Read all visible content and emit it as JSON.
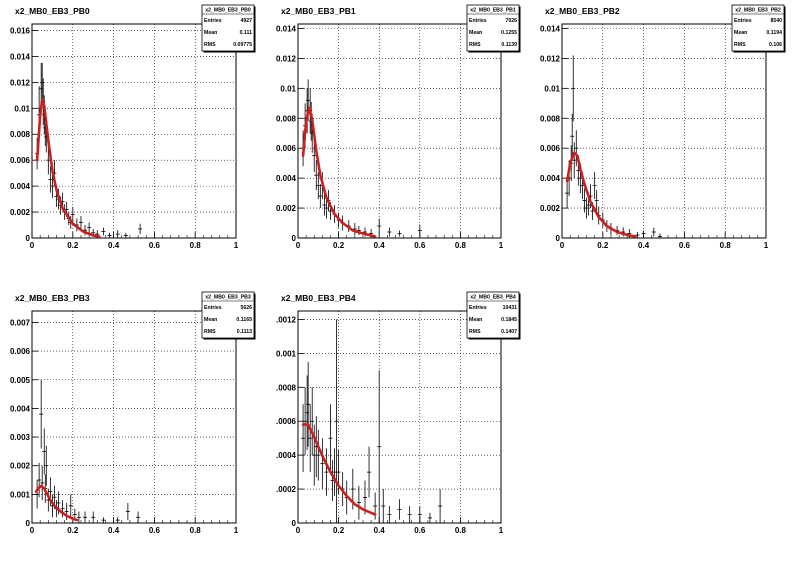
{
  "chart_data": [
    {
      "type": "scatter",
      "title": "x2_MB0_EB3_PB0",
      "xlim": [
        0,
        1
      ],
      "ylim": [
        0,
        0.0165
      ],
      "x_ticks": [
        "0",
        "0.2",
        "0.4",
        "0.6",
        "0.8",
        "1"
      ],
      "y_ticks": [
        0,
        0.002,
        0.004,
        0.006,
        0.008,
        0.01,
        0.012,
        0.014,
        0.016
      ],
      "y_tick_labels": [
        "0",
        "0.002",
        "0.004",
        "0.006",
        "0.008",
        "0.01",
        "0.012",
        "0.014",
        "0.016"
      ],
      "grid": true,
      "stats": {
        "name": "x2_MB0_EB3_PB0",
        "rows": [
          [
            "Entries",
            "4927"
          ],
          [
            "Mean",
            "0.111"
          ],
          [
            "RMS",
            "0.09775"
          ]
        ]
      },
      "points": [
        [
          0.025,
          0.0065,
          0.0012
        ],
        [
          0.035,
          0.0095,
          0.0022
        ],
        [
          0.045,
          0.0115,
          0.002
        ],
        [
          0.05,
          0.012,
          0.0015
        ],
        [
          0.055,
          0.0105,
          0.0018
        ],
        [
          0.06,
          0.0095,
          0.0015
        ],
        [
          0.065,
          0.0085,
          0.0014
        ],
        [
          0.07,
          0.0078,
          0.0012
        ],
        [
          0.08,
          0.006,
          0.0011
        ],
        [
          0.09,
          0.0045,
          0.001
        ],
        [
          0.1,
          0.004,
          0.0009
        ],
        [
          0.11,
          0.005,
          0.001
        ],
        [
          0.12,
          0.0032,
          0.0008
        ],
        [
          0.13,
          0.003,
          0.0008
        ],
        [
          0.14,
          0.0025,
          0.0007
        ],
        [
          0.15,
          0.0028,
          0.0007
        ],
        [
          0.16,
          0.002,
          0.0006
        ],
        [
          0.17,
          0.0022,
          0.0006
        ],
        [
          0.18,
          0.0015,
          0.0005
        ],
        [
          0.19,
          0.0012,
          0.0005
        ],
        [
          0.2,
          0.0018,
          0.0006
        ],
        [
          0.22,
          0.001,
          0.0005
        ],
        [
          0.24,
          0.0012,
          0.0005
        ],
        [
          0.26,
          0.0006,
          0.0004
        ],
        [
          0.28,
          0.0008,
          0.0004
        ],
        [
          0.3,
          0.0004,
          0.0003
        ],
        [
          0.32,
          0.0003,
          0.0003
        ],
        [
          0.35,
          0.0005,
          0.0003
        ],
        [
          0.38,
          0.0002,
          0.0002
        ],
        [
          0.42,
          0.0003,
          0.0003
        ],
        [
          0.46,
          0.0002,
          0.0002
        ],
        [
          0.53,
          0.0007,
          0.0004
        ]
      ],
      "fit": {
        "x": [
          0.025,
          0.04,
          0.05,
          0.06,
          0.08,
          0.1,
          0.12,
          0.15,
          0.2,
          0.25,
          0.3,
          0.33
        ],
        "y": [
          0.006,
          0.0095,
          0.0107,
          0.0102,
          0.0075,
          0.0052,
          0.0037,
          0.0023,
          0.0011,
          0.0005,
          0.0002,
          0.0001
        ]
      }
    },
    {
      "type": "scatter",
      "title": "x2_MB0_EB3_PB1",
      "xlim": [
        0,
        1
      ],
      "ylim": [
        0,
        0.0143
      ],
      "x_ticks": [
        "0",
        "0.2",
        "0.4",
        "0.6",
        "0.8",
        "1"
      ],
      "y_ticks": [
        0,
        0.002,
        0.004,
        0.006,
        0.008,
        0.01,
        0.012,
        0.014
      ],
      "y_tick_labels": [
        "0",
        "0.002",
        "0.004",
        "0.006",
        "0.008",
        "0.01",
        "0.012",
        "0.014"
      ],
      "grid": true,
      "stats": {
        "name": "x2_MB0_EB3_PB1",
        "rows": [
          [
            "Entries",
            "7026"
          ],
          [
            "Mean",
            "0.1255"
          ],
          [
            "RMS",
            "0.1139"
          ]
        ]
      },
      "points": [
        [
          0.025,
          0.006,
          0.0012
        ],
        [
          0.035,
          0.0075,
          0.0015
        ],
        [
          0.045,
          0.0085,
          0.0015
        ],
        [
          0.05,
          0.0092,
          0.0014
        ],
        [
          0.06,
          0.0085,
          0.0015
        ],
        [
          0.065,
          0.0078,
          0.0013
        ],
        [
          0.07,
          0.007,
          0.0013
        ],
        [
          0.08,
          0.0055,
          0.0011
        ],
        [
          0.09,
          0.0042,
          0.001
        ],
        [
          0.1,
          0.0035,
          0.0009
        ],
        [
          0.11,
          0.0028,
          0.0008
        ],
        [
          0.12,
          0.0035,
          0.0009
        ],
        [
          0.13,
          0.0022,
          0.0007
        ],
        [
          0.14,
          0.002,
          0.0007
        ],
        [
          0.15,
          0.0025,
          0.0007
        ],
        [
          0.16,
          0.0018,
          0.0006
        ],
        [
          0.18,
          0.0016,
          0.0006
        ],
        [
          0.2,
          0.0012,
          0.0005
        ],
        [
          0.22,
          0.001,
          0.0005
        ],
        [
          0.25,
          0.0008,
          0.0004
        ],
        [
          0.28,
          0.0006,
          0.0004
        ],
        [
          0.3,
          0.0005,
          0.0003
        ],
        [
          0.33,
          0.0004,
          0.0003
        ],
        [
          0.36,
          0.0003,
          0.0003
        ],
        [
          0.4,
          0.0008,
          0.0005
        ],
        [
          0.45,
          0.0004,
          0.0003
        ],
        [
          0.5,
          0.0003,
          0.0002
        ],
        [
          0.6,
          0.0005,
          0.0004
        ]
      ],
      "fit": {
        "x": [
          0.025,
          0.04,
          0.055,
          0.07,
          0.09,
          0.11,
          0.14,
          0.18,
          0.22,
          0.27,
          0.32,
          0.38
        ],
        "y": [
          0.0055,
          0.0078,
          0.0087,
          0.0079,
          0.0058,
          0.0042,
          0.0027,
          0.0016,
          0.001,
          0.0005,
          0.0003,
          0.0001
        ]
      }
    },
    {
      "type": "scatter",
      "title": "x2_MB0_EB3_PB2",
      "xlim": [
        0,
        1
      ],
      "ylim": [
        0,
        0.0143
      ],
      "x_ticks": [
        "0",
        "0.2",
        "0.4",
        "0.6",
        "0.8",
        "1"
      ],
      "y_ticks": [
        0,
        0.002,
        0.004,
        0.006,
        0.008,
        0.01,
        0.012,
        0.014
      ],
      "y_tick_labels": [
        "0",
        "0.002",
        "0.004",
        "0.006",
        "0.008",
        "0.01",
        "0.012",
        "0.014"
      ],
      "grid": true,
      "stats": {
        "name": "x2_MB0_EB3_PB2",
        "rows": [
          [
            "Entries",
            "8540"
          ],
          [
            "Mean",
            "0.1194"
          ],
          [
            "RMS",
            "0.106"
          ]
        ]
      },
      "points": [
        [
          0.025,
          0.003,
          0.001
        ],
        [
          0.035,
          0.004,
          0.0012
        ],
        [
          0.045,
          0.005,
          0.0012
        ],
        [
          0.05,
          0.0068,
          0.0015
        ],
        [
          0.055,
          0.01,
          0.0022
        ],
        [
          0.06,
          0.0052,
          0.0012
        ],
        [
          0.07,
          0.006,
          0.0012
        ],
        [
          0.08,
          0.0045,
          0.001
        ],
        [
          0.09,
          0.004,
          0.001
        ],
        [
          0.1,
          0.0035,
          0.0009
        ],
        [
          0.11,
          0.0025,
          0.0008
        ],
        [
          0.12,
          0.002,
          0.0007
        ],
        [
          0.13,
          0.0022,
          0.0007
        ],
        [
          0.14,
          0.0028,
          0.0008
        ],
        [
          0.15,
          0.0018,
          0.0006
        ],
        [
          0.16,
          0.0035,
          0.0009
        ],
        [
          0.17,
          0.0025,
          0.0007
        ],
        [
          0.18,
          0.0015,
          0.0006
        ],
        [
          0.2,
          0.0012,
          0.0005
        ],
        [
          0.22,
          0.0008,
          0.0004
        ],
        [
          0.24,
          0.0006,
          0.0004
        ],
        [
          0.27,
          0.0005,
          0.0003
        ],
        [
          0.3,
          0.0004,
          0.0003
        ],
        [
          0.33,
          0.0003,
          0.0003
        ],
        [
          0.37,
          0.0002,
          0.0002
        ],
        [
          0.4,
          0.0003,
          0.0002
        ],
        [
          0.45,
          0.0004,
          0.0003
        ],
        [
          0.48,
          0.0001,
          0.0002
        ]
      ],
      "fit": {
        "x": [
          0.025,
          0.04,
          0.06,
          0.075,
          0.09,
          0.11,
          0.14,
          0.18,
          0.22,
          0.27,
          0.32,
          0.36
        ],
        "y": [
          0.0038,
          0.005,
          0.0057,
          0.0055,
          0.0046,
          0.0036,
          0.0024,
          0.0014,
          0.0008,
          0.0004,
          0.0002,
          0.0001
        ]
      }
    },
    {
      "type": "scatter",
      "title": "x2_MB0_EB3_PB3",
      "xlim": [
        0,
        1
      ],
      "ylim": [
        0,
        0.0074
      ],
      "x_ticks": [
        "0",
        "0.2",
        "0.4",
        "0.6",
        "0.8",
        "1"
      ],
      "y_ticks": [
        0,
        0.001,
        0.002,
        0.003,
        0.004,
        0.005,
        0.006,
        0.007
      ],
      "y_tick_labels": [
        "0",
        "0.001",
        "0.002",
        "0.003",
        "0.004",
        "0.005",
        "0.006",
        "0.007"
      ],
      "grid": true,
      "stats": {
        "name": "x2_MB0_EB3_PB3",
        "rows": [
          [
            "Entries",
            "5626"
          ],
          [
            "Mean",
            "0.1165"
          ],
          [
            "RMS",
            "0.1113"
          ]
        ]
      },
      "points": [
        [
          0.025,
          0.001,
          0.0005
        ],
        [
          0.035,
          0.0015,
          0.0006
        ],
        [
          0.045,
          0.0038,
          0.0012
        ],
        [
          0.05,
          0.0014,
          0.0006
        ],
        [
          0.06,
          0.0025,
          0.0008
        ],
        [
          0.065,
          0.0012,
          0.0005
        ],
        [
          0.07,
          0.002,
          0.0007
        ],
        [
          0.08,
          0.0008,
          0.0004
        ],
        [
          0.09,
          0.0011,
          0.0005
        ],
        [
          0.1,
          0.0006,
          0.0004
        ],
        [
          0.11,
          0.0009,
          0.0004
        ],
        [
          0.12,
          0.0005,
          0.0003
        ],
        [
          0.13,
          0.0007,
          0.0004
        ],
        [
          0.15,
          0.0005,
          0.0003
        ],
        [
          0.17,
          0.0004,
          0.0003
        ],
        [
          0.19,
          0.0006,
          0.0004
        ],
        [
          0.21,
          0.0003,
          0.0002
        ],
        [
          0.23,
          0.0002,
          0.0002
        ],
        [
          0.26,
          0.0002,
          0.0002
        ],
        [
          0.3,
          0.0002,
          0.0002
        ],
        [
          0.35,
          0.0001,
          0.0001
        ],
        [
          0.42,
          0.0001,
          0.0001
        ],
        [
          0.47,
          0.0004,
          0.0003
        ],
        [
          0.52,
          0.0002,
          0.0002
        ]
      ],
      "fit": {
        "x": [
          0.02,
          0.03,
          0.045,
          0.06,
          0.075,
          0.09,
          0.11,
          0.14,
          0.17,
          0.2,
          0.22
        ],
        "y": [
          0.0011,
          0.0012,
          0.0013,
          0.0012,
          0.001,
          0.0008,
          0.0006,
          0.0004,
          0.00025,
          0.00015,
          0.0001
        ]
      }
    },
    {
      "type": "scatter",
      "title": "x2_MB0_EB3_PB4",
      "xlim": [
        0,
        1
      ],
      "ylim": [
        0,
        0.00125
      ],
      "x_ticks": [
        "0",
        "0.2",
        "0.4",
        "0.6",
        "0.8",
        "1"
      ],
      "y_ticks": [
        0,
        0.0002,
        0.0004,
        0.0006,
        0.0008,
        0.001,
        0.0012
      ],
      "y_tick_labels": [
        "0",
        ".0002",
        ".0004",
        ".0006",
        ".0008",
        "0.001",
        ".0012"
      ],
      "grid": true,
      "stats": {
        "name": "x2_MB0_EB3_PB4",
        "rows": [
          [
            "Entries",
            "10431"
          ],
          [
            "Mean",
            "0.1845"
          ],
          [
            "RMS",
            "0.1407"
          ]
        ]
      },
      "points": [
        [
          0.025,
          0.0005,
          0.0002
        ],
        [
          0.035,
          0.0006,
          0.0002
        ],
        [
          0.045,
          0.00065,
          0.00022
        ],
        [
          0.05,
          0.0007,
          0.00025
        ],
        [
          0.06,
          0.0005,
          0.0002
        ],
        [
          0.07,
          0.0006,
          0.0002
        ],
        [
          0.08,
          0.0004,
          0.00018
        ],
        [
          0.09,
          0.00045,
          0.00018
        ],
        [
          0.1,
          0.0004,
          0.00015
        ],
        [
          0.12,
          0.00035,
          0.00015
        ],
        [
          0.14,
          0.0003,
          0.00014
        ],
        [
          0.16,
          0.0005,
          0.0002
        ],
        [
          0.17,
          0.00025,
          0.00012
        ],
        [
          0.18,
          0.0003,
          0.00014
        ],
        [
          0.19,
          0.0006,
          0.0006
        ],
        [
          0.2,
          0.0003,
          0.00013
        ],
        [
          0.22,
          0.0002,
          0.0001
        ],
        [
          0.24,
          0.00015,
          0.0001
        ],
        [
          0.27,
          0.0002,
          0.00012
        ],
        [
          0.3,
          0.00012,
          0.0001
        ],
        [
          0.33,
          0.00015,
          0.0001
        ],
        [
          0.35,
          0.0003,
          0.00015
        ],
        [
          0.38,
          0.0001,
          8e-05
        ],
        [
          0.4,
          0.00045,
          0.00045
        ],
        [
          0.42,
          0.0001,
          0.0001
        ],
        [
          0.45,
          5e-05,
          5e-05
        ],
        [
          0.5,
          8e-05,
          6e-05
        ],
        [
          0.55,
          5e-05,
          5e-05
        ],
        [
          0.6,
          5e-05,
          5e-05
        ],
        [
          0.65,
          3e-05,
          3e-05
        ],
        [
          0.7,
          0.0001,
          0.0001
        ]
      ],
      "fit": {
        "x": [
          0.025,
          0.05,
          0.075,
          0.1,
          0.13,
          0.16,
          0.2,
          0.24,
          0.28,
          0.32,
          0.36,
          0.38
        ],
        "y": [
          0.00058,
          0.00058,
          0.00052,
          0.00045,
          0.00037,
          0.0003,
          0.00022,
          0.00016,
          0.00011,
          8e-05,
          6e-05,
          5e-05
        ]
      }
    }
  ]
}
